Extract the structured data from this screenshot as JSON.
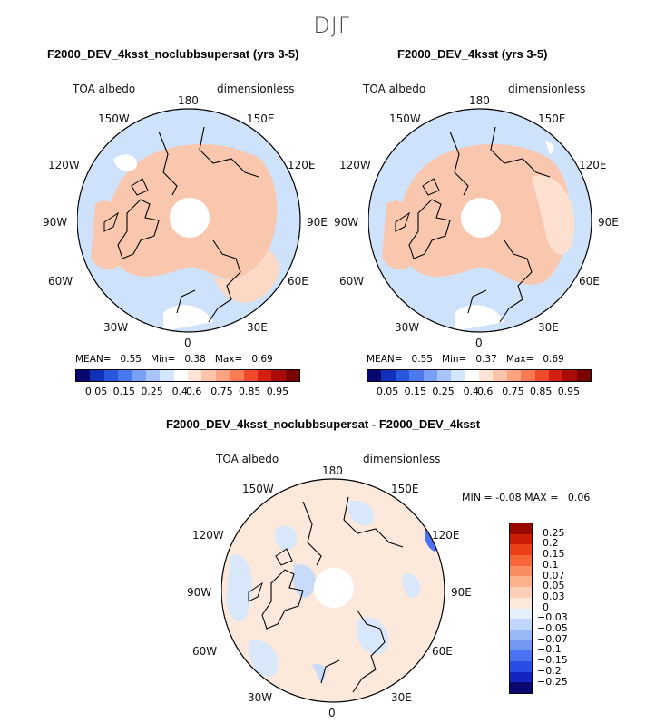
{
  "figure": {
    "season": "DJF",
    "maps": [
      {
        "title": "F2000_DEV_4ksst_noclubbsupersat (yrs 3-5)",
        "variable": "TOA albedo",
        "units": "dimensionless",
        "stats": {
          "mean_label": "MEAN=",
          "mean": "0.55",
          "min_label": "Min=",
          "min": "0.38",
          "max_label": "Max=",
          "max": "0.69"
        }
      },
      {
        "title": "F2000_DEV_4ksst (yrs 3-5)",
        "variable": "TOA albedo",
        "units": "dimensionless",
        "stats": {
          "mean_label": "MEAN=",
          "mean": "0.55",
          "min_label": "Min=",
          "min": "0.37",
          "max_label": "Max=",
          "max": "0.69"
        }
      },
      {
        "title": "F2000_DEV_4ksst_noclubbsupersat - F2000_DEV_4ksst",
        "variable": "TOA albedo",
        "units": "dimensionless",
        "stats": {
          "min_label": "MIN =",
          "min": "-0.08",
          "max_label": "MAX =",
          "max": "0.06"
        }
      }
    ],
    "longitude_labels": [
      "180",
      "150E",
      "120E",
      "90E",
      "60E",
      "30E",
      "0",
      "30W",
      "60W",
      "90W",
      "120W",
      "150W"
    ],
    "colorbar_abs": {
      "colors": [
        "#08086e",
        "#1030b8",
        "#2856dc",
        "#4a78ee",
        "#7aa0f6",
        "#a8c4fa",
        "#d4e6fb",
        "#ffffff",
        "#fde4d4",
        "#fcc4a8",
        "#fca27e",
        "#fa7a54",
        "#f04a2a",
        "#d42010",
        "#a80c04",
        "#7a0400"
      ],
      "ticks": [
        "0.05",
        "0.15",
        "0.25",
        "0.4",
        "0.6",
        "0.75",
        "0.85",
        "0.95"
      ]
    },
    "colorbar_diff": {
      "colors": [
        "#08086e",
        "#1424c0",
        "#2a4ce6",
        "#4a72f2",
        "#7298f4",
        "#98b8f8",
        "#c0d6fb",
        "#e6f0fd",
        "#fde8dc",
        "#fcd0b6",
        "#fcb08c",
        "#fa8c62",
        "#f66638",
        "#ee4018",
        "#cc1c06",
        "#980800"
      ],
      "ticks": [
        "0.25",
        "0.2",
        "0.15",
        "0.1",
        "0.07",
        "0.05",
        "0.03",
        "0",
        "−0.03",
        "−0.05",
        "−0.07",
        "−0.1",
        "−0.15",
        "−0.2",
        "−0.25"
      ]
    }
  }
}
